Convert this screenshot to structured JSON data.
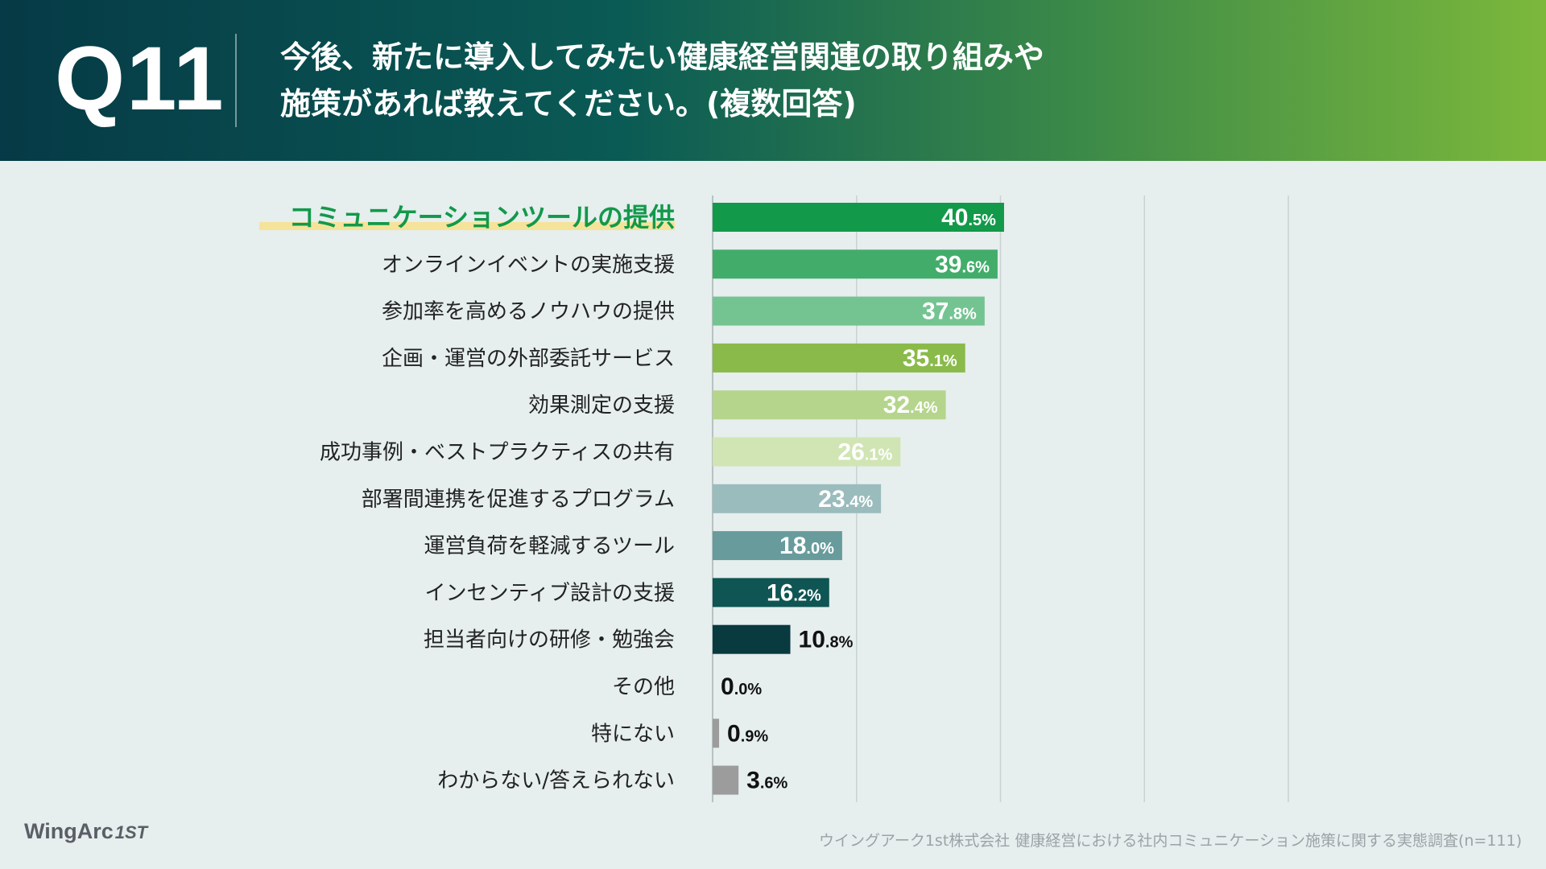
{
  "header": {
    "question_number": "Q11",
    "question_line1": "今後、新たに導入してみたい健康経営関連の取り組みや",
    "question_line2": "施策があれば教えてください。(複数回答)"
  },
  "chart_data": {
    "type": "bar",
    "orientation": "horizontal",
    "title": "今後、新たに導入してみたい健康経営関連の取り組みや施策があれば教えてください。(複数回答)",
    "xlim": [
      0,
      80
    ],
    "grid": true,
    "unit": "%",
    "highlighted_category": "コミュニケーションツールの提供",
    "categories": [
      "コミュニケーションツールの提供",
      "オンラインイベントの実施支援",
      "参加率を高めるノウハウの提供",
      "企画・運営の外部委託サービス",
      "効果測定の支援",
      "成功事例・ベストプラクティスの共有",
      "部署間連携を促進するプログラム",
      "運営負荷を軽減するツール",
      "インセンティブ設計の支援",
      "担当者向けの研修・勉強会",
      "その他",
      "特にない",
      "わからない/答えられない"
    ],
    "values": [
      40.5,
      39.6,
      37.8,
      35.1,
      32.4,
      26.1,
      23.4,
      18.0,
      16.2,
      10.8,
      0.0,
      0.9,
      3.6
    ],
    "value_labels": [
      [
        "40",
        ".5%"
      ],
      [
        "39",
        ".6%"
      ],
      [
        "37",
        ".8%"
      ],
      [
        "35",
        ".1%"
      ],
      [
        "32",
        ".4%"
      ],
      [
        "26",
        ".1%"
      ],
      [
        "23",
        ".4%"
      ],
      [
        "18",
        ".0%"
      ],
      [
        "16",
        ".2%"
      ],
      [
        "10",
        ".8%"
      ],
      [
        "0",
        ".0%"
      ],
      [
        "0",
        ".9%"
      ],
      [
        "3",
        ".6%"
      ]
    ],
    "bar_colors": [
      "#12994a",
      "#42ad6a",
      "#74c492",
      "#8aba4a",
      "#b5d58c",
      "#d0e5b3",
      "#9bbcbd",
      "#689b9c",
      "#0e5553",
      "#083a40",
      "#9c9c9c",
      "#9c9c9c",
      "#9c9c9c"
    ],
    "highlight_color": "#12994a",
    "highlight_underline_color": "#f6e39a",
    "label_color": "#222222",
    "grid_color": "#c9d2d2"
  },
  "footer": {
    "brand": "WingArc",
    "brand_suffix": "1ST",
    "source": "ウイングアーク1st株式会社 健康経営における社内コミュニケーション施策に関する実態調査(n=111)"
  }
}
